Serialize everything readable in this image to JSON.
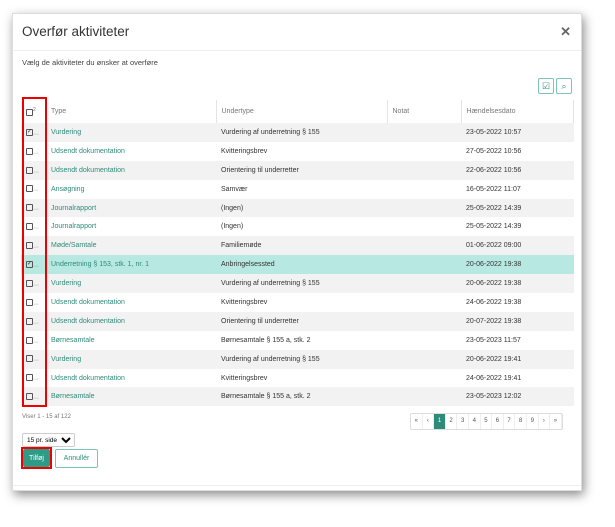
{
  "title": "Overfør aktiviteter",
  "subtitle": "Vælg de aktiviteter du ønsker at overføre",
  "toolbar": {
    "select_icon": "checklist-icon",
    "search_icon": "search-icon"
  },
  "table": {
    "selected_count": "2",
    "headers": [
      "Type",
      "Undertype",
      "Notat",
      "Hændelsesdato"
    ],
    "rows": [
      {
        "checked": true,
        "type": "Vurdering",
        "subtype": "Vurdering af underretning § 155",
        "note": "",
        "date": "23-05-2022 10:57"
      },
      {
        "checked": false,
        "type": "Udsendt dokumentation",
        "subtype": "Kvitteringsbrev",
        "note": "",
        "date": "27-05-2022 10:56"
      },
      {
        "checked": false,
        "type": "Udsendt dokumentation",
        "subtype": "Orientering til underretter",
        "note": "",
        "date": "22-06-2022 10:56"
      },
      {
        "checked": false,
        "type": "Ansøgning",
        "subtype": "Samvær",
        "note": "",
        "date": "16-05-2022 11:07"
      },
      {
        "checked": false,
        "type": "Journalrapport",
        "subtype": "(Ingen)",
        "note": "",
        "date": "25-05-2022 14:39"
      },
      {
        "checked": false,
        "type": "Journalrapport",
        "subtype": "(Ingen)",
        "note": "",
        "date": "25-05-2022 14:39"
      },
      {
        "checked": false,
        "type": "Møde/Samtale",
        "subtype": "Familiemøde",
        "note": "",
        "date": "01-06-2022 09:00"
      },
      {
        "checked": true,
        "type": "Underretning § 153, stk. 1, nr. 1",
        "subtype": "Anbringelsessted",
        "note": "",
        "date": "20-06-2022 19:38",
        "highlighted": true
      },
      {
        "checked": false,
        "type": "Vurdering",
        "subtype": "Vurdering af underretning § 155",
        "note": "",
        "date": "20-06-2022 19:38"
      },
      {
        "checked": false,
        "type": "Udsendt dokumentation",
        "subtype": "Kvitteringsbrev",
        "note": "",
        "date": "24-06-2022 19:38"
      },
      {
        "checked": false,
        "type": "Udsendt dokumentation",
        "subtype": "Orientering til underretter",
        "note": "",
        "date": "20-07-2022 19:38"
      },
      {
        "checked": false,
        "type": "Børnesamtale",
        "subtype": "Børnesamtale § 155 a, stk. 2",
        "note": "",
        "date": "23-05-2023 11:57"
      },
      {
        "checked": false,
        "type": "Vurdering",
        "subtype": "Vurdering af underretning § 155",
        "note": "",
        "date": "20-06-2022 19:41"
      },
      {
        "checked": false,
        "type": "Udsendt dokumentation",
        "subtype": "Kvitteringsbrev",
        "note": "",
        "date": "24-06-2022 19:41"
      },
      {
        "checked": false,
        "type": "Børnesamtale",
        "subtype": "Børnesamtale § 155 a, stk. 2",
        "note": "",
        "date": "23-05-2023 12:02"
      }
    ]
  },
  "footer": {
    "info": "Viser 1 - 15 af 122",
    "pages": [
      "«",
      "‹",
      "1",
      "2",
      "3",
      "4",
      "5",
      "6",
      "7",
      "8",
      "9",
      "›",
      "»"
    ],
    "active_page": "1",
    "page_size": "15 pr. side",
    "add_label": "Tilføj",
    "cancel_label": "Annullér"
  },
  "colors": {
    "accent": "#2e8b7a",
    "highlight": "#b8e8e2",
    "annotation": "#e00000"
  }
}
